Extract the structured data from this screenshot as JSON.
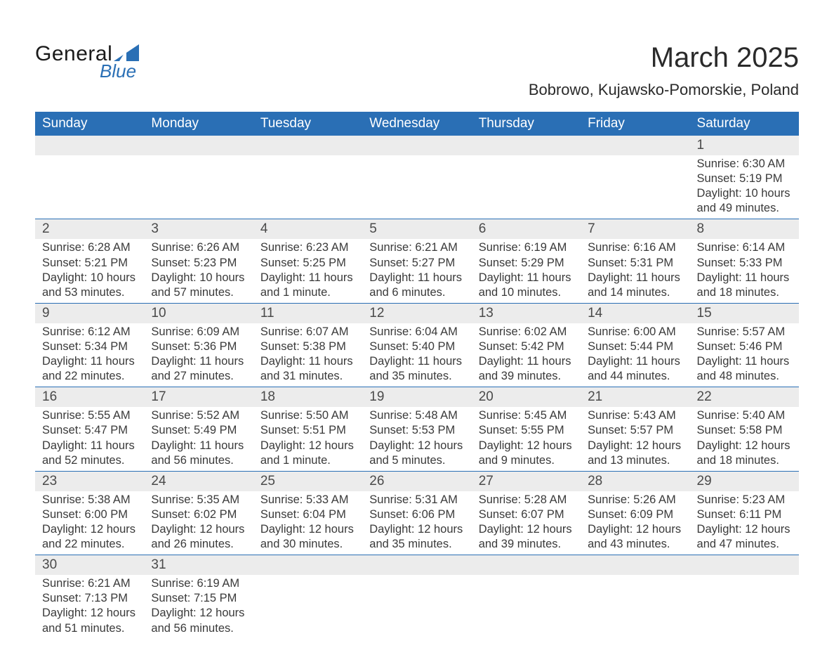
{
  "brand": {
    "general": "General",
    "blue": "Blue"
  },
  "title": "March 2025",
  "location": "Bobrowo, Kujawsko-Pomorskie, Poland",
  "colors": {
    "header_bg": "#2a6fb5",
    "header_text": "#ffffff",
    "daynum_bg": "#ececec",
    "text": "#3a3a3a",
    "page_bg": "#ffffff",
    "row_border": "#2a6fb5"
  },
  "fonts": {
    "title_size_pt": 40,
    "location_size_pt": 22,
    "dow_size_pt": 19,
    "daynum_size_pt": 19,
    "detail_size_pt": 16.5
  },
  "days_of_week": [
    "Sunday",
    "Monday",
    "Tuesday",
    "Wednesday",
    "Thursday",
    "Friday",
    "Saturday"
  ],
  "labels": {
    "sunrise": "Sunrise:",
    "sunset": "Sunset:",
    "daylight": "Daylight:"
  },
  "weeks": [
    [
      null,
      null,
      null,
      null,
      null,
      null,
      {
        "n": "1",
        "sunrise": "6:30 AM",
        "sunset": "5:19 PM",
        "daylight": "10 hours and 49 minutes."
      }
    ],
    [
      {
        "n": "2",
        "sunrise": "6:28 AM",
        "sunset": "5:21 PM",
        "daylight": "10 hours and 53 minutes."
      },
      {
        "n": "3",
        "sunrise": "6:26 AM",
        "sunset": "5:23 PM",
        "daylight": "10 hours and 57 minutes."
      },
      {
        "n": "4",
        "sunrise": "6:23 AM",
        "sunset": "5:25 PM",
        "daylight": "11 hours and 1 minute."
      },
      {
        "n": "5",
        "sunrise": "6:21 AM",
        "sunset": "5:27 PM",
        "daylight": "11 hours and 6 minutes."
      },
      {
        "n": "6",
        "sunrise": "6:19 AM",
        "sunset": "5:29 PM",
        "daylight": "11 hours and 10 minutes."
      },
      {
        "n": "7",
        "sunrise": "6:16 AM",
        "sunset": "5:31 PM",
        "daylight": "11 hours and 14 minutes."
      },
      {
        "n": "8",
        "sunrise": "6:14 AM",
        "sunset": "5:33 PM",
        "daylight": "11 hours and 18 minutes."
      }
    ],
    [
      {
        "n": "9",
        "sunrise": "6:12 AM",
        "sunset": "5:34 PM",
        "daylight": "11 hours and 22 minutes."
      },
      {
        "n": "10",
        "sunrise": "6:09 AM",
        "sunset": "5:36 PM",
        "daylight": "11 hours and 27 minutes."
      },
      {
        "n": "11",
        "sunrise": "6:07 AM",
        "sunset": "5:38 PM",
        "daylight": "11 hours and 31 minutes."
      },
      {
        "n": "12",
        "sunrise": "6:04 AM",
        "sunset": "5:40 PM",
        "daylight": "11 hours and 35 minutes."
      },
      {
        "n": "13",
        "sunrise": "6:02 AM",
        "sunset": "5:42 PM",
        "daylight": "11 hours and 39 minutes."
      },
      {
        "n": "14",
        "sunrise": "6:00 AM",
        "sunset": "5:44 PM",
        "daylight": "11 hours and 44 minutes."
      },
      {
        "n": "15",
        "sunrise": "5:57 AM",
        "sunset": "5:46 PM",
        "daylight": "11 hours and 48 minutes."
      }
    ],
    [
      {
        "n": "16",
        "sunrise": "5:55 AM",
        "sunset": "5:47 PM",
        "daylight": "11 hours and 52 minutes."
      },
      {
        "n": "17",
        "sunrise": "5:52 AM",
        "sunset": "5:49 PM",
        "daylight": "11 hours and 56 minutes."
      },
      {
        "n": "18",
        "sunrise": "5:50 AM",
        "sunset": "5:51 PM",
        "daylight": "12 hours and 1 minute."
      },
      {
        "n": "19",
        "sunrise": "5:48 AM",
        "sunset": "5:53 PM",
        "daylight": "12 hours and 5 minutes."
      },
      {
        "n": "20",
        "sunrise": "5:45 AM",
        "sunset": "5:55 PM",
        "daylight": "12 hours and 9 minutes."
      },
      {
        "n": "21",
        "sunrise": "5:43 AM",
        "sunset": "5:57 PM",
        "daylight": "12 hours and 13 minutes."
      },
      {
        "n": "22",
        "sunrise": "5:40 AM",
        "sunset": "5:58 PM",
        "daylight": "12 hours and 18 minutes."
      }
    ],
    [
      {
        "n": "23",
        "sunrise": "5:38 AM",
        "sunset": "6:00 PM",
        "daylight": "12 hours and 22 minutes."
      },
      {
        "n": "24",
        "sunrise": "5:35 AM",
        "sunset": "6:02 PM",
        "daylight": "12 hours and 26 minutes."
      },
      {
        "n": "25",
        "sunrise": "5:33 AM",
        "sunset": "6:04 PM",
        "daylight": "12 hours and 30 minutes."
      },
      {
        "n": "26",
        "sunrise": "5:31 AM",
        "sunset": "6:06 PM",
        "daylight": "12 hours and 35 minutes."
      },
      {
        "n": "27",
        "sunrise": "5:28 AM",
        "sunset": "6:07 PM",
        "daylight": "12 hours and 39 minutes."
      },
      {
        "n": "28",
        "sunrise": "5:26 AM",
        "sunset": "6:09 PM",
        "daylight": "12 hours and 43 minutes."
      },
      {
        "n": "29",
        "sunrise": "5:23 AM",
        "sunset": "6:11 PM",
        "daylight": "12 hours and 47 minutes."
      }
    ],
    [
      {
        "n": "30",
        "sunrise": "6:21 AM",
        "sunset": "7:13 PM",
        "daylight": "12 hours and 51 minutes."
      },
      {
        "n": "31",
        "sunrise": "6:19 AM",
        "sunset": "7:15 PM",
        "daylight": "12 hours and 56 minutes."
      },
      null,
      null,
      null,
      null,
      null
    ]
  ]
}
